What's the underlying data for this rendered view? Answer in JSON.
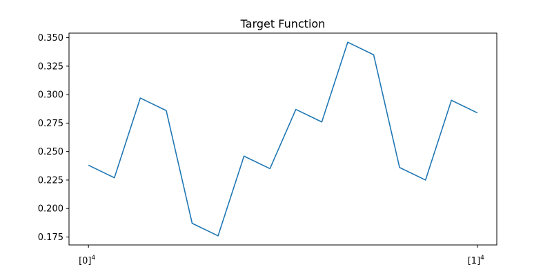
{
  "chart_data": {
    "type": "line",
    "title": "Target Function",
    "xlabel": "",
    "ylabel": "",
    "x": [
      0,
      0.0667,
      0.1333,
      0.2,
      0.2667,
      0.3333,
      0.4,
      0.4667,
      0.5333,
      0.6,
      0.6667,
      0.7333,
      0.8,
      0.8667,
      0.9333,
      1.0
    ],
    "series": [
      {
        "name": "",
        "color": "#1f77b4",
        "values": [
          0.238,
          0.227,
          0.297,
          0.286,
          0.187,
          0.176,
          0.246,
          0.235,
          0.287,
          0.276,
          0.346,
          0.335,
          0.236,
          0.225,
          0.295,
          0.284
        ]
      }
    ],
    "xlim": [
      -0.05,
      1.05
    ],
    "ylim": [
      0.168,
      0.354
    ],
    "yticks": [
      0.175,
      0.2,
      0.225,
      0.25,
      0.275,
      0.3,
      0.325,
      0.35
    ],
    "ytick_labels": [
      "0.175",
      "0.200",
      "0.225",
      "0.250",
      "0.275",
      "0.300",
      "0.325",
      "0.350"
    ],
    "xticks": [
      {
        "value": 0,
        "base": "[0]",
        "exp": "4"
      },
      {
        "value": 1,
        "base": "[1]",
        "exp": "4"
      }
    ],
    "grid": false,
    "legend": "none"
  }
}
